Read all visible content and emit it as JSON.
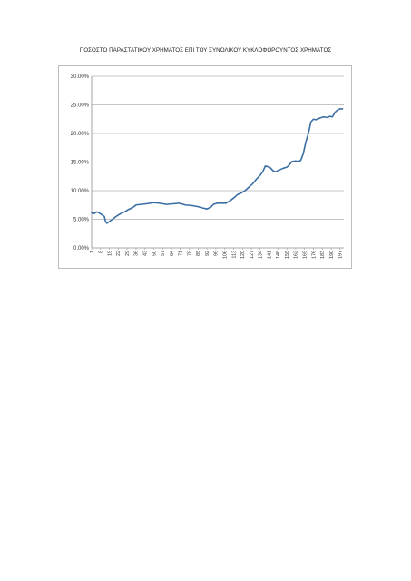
{
  "chart_data": {
    "type": "line",
    "title": "ΠΟΣΟΣΤΟ ΠΑΡΑΣΤΑΤΙΚΟΥ ΧΡΗΜΑΤΟΣ ΕΠΙ ΤΟΥ ΣΥΝΟΛΙΚΟΥ ΚΥΚΛΟΦΟΡΟΥΝΤΟΣ ΧΡΗΜΑΤΟΣ",
    "xlabel": "",
    "ylabel": "",
    "ylim": [
      0,
      30
    ],
    "xlim": [
      1,
      200
    ],
    "grid": true,
    "legend": "none",
    "y_tick_labels": [
      "0.00%",
      "5.00%",
      "10.00%",
      "15.00%",
      "20.00%",
      "25.00%",
      "30.00%"
    ],
    "x_tick_labels": [
      "1",
      "8",
      "15",
      "22",
      "29",
      "36",
      "43",
      "50",
      "57",
      "64",
      "71",
      "78",
      "85",
      "92",
      "99",
      "106",
      "113",
      "120",
      "127",
      "134",
      "141",
      "148",
      "155",
      "162",
      "169",
      "176",
      "183",
      "190",
      "197"
    ],
    "colors": {
      "line": "#3a6ea5",
      "grid": "#8c8c8c"
    },
    "series": [
      {
        "values": [
          [
            1,
            6.1
          ],
          [
            3,
            6.0
          ],
          [
            5,
            6.3
          ],
          [
            7,
            6.1
          ],
          [
            9,
            5.8
          ],
          [
            11,
            5.5
          ],
          [
            12,
            4.6
          ],
          [
            13,
            4.3
          ],
          [
            15,
            4.6
          ],
          [
            18,
            5.1
          ],
          [
            21,
            5.6
          ],
          [
            24,
            6.0
          ],
          [
            27,
            6.3
          ],
          [
            30,
            6.7
          ],
          [
            33,
            7.0
          ],
          [
            35,
            7.3
          ],
          [
            36,
            7.5
          ],
          [
            40,
            7.6
          ],
          [
            44,
            7.7
          ],
          [
            50,
            7.9
          ],
          [
            55,
            7.8
          ],
          [
            60,
            7.6
          ],
          [
            65,
            7.7
          ],
          [
            70,
            7.8
          ],
          [
            75,
            7.5
          ],
          [
            80,
            7.4
          ],
          [
            85,
            7.2
          ],
          [
            88,
            7.0
          ],
          [
            92,
            6.8
          ],
          [
            95,
            7.1
          ],
          [
            97,
            7.6
          ],
          [
            100,
            7.8
          ],
          [
            103,
            7.8
          ],
          [
            107,
            7.8
          ],
          [
            110,
            8.2
          ],
          [
            113,
            8.7
          ],
          [
            116,
            9.3
          ],
          [
            119,
            9.6
          ],
          [
            122,
            10.0
          ],
          [
            125,
            10.6
          ],
          [
            128,
            11.2
          ],
          [
            131,
            12.0
          ],
          [
            134,
            12.7
          ],
          [
            136,
            13.3
          ],
          [
            138,
            14.3
          ],
          [
            140,
            14.2
          ],
          [
            142,
            14.0
          ],
          [
            144,
            13.5
          ],
          [
            146,
            13.3
          ],
          [
            149,
            13.6
          ],
          [
            152,
            13.9
          ],
          [
            155,
            14.1
          ],
          [
            157,
            14.5
          ],
          [
            159,
            15.1
          ],
          [
            162,
            15.2
          ],
          [
            164,
            15.1
          ],
          [
            166,
            15.3
          ],
          [
            168,
            16.5
          ],
          [
            170,
            18.5
          ],
          [
            172,
            20.0
          ],
          [
            173,
            21.0
          ],
          [
            174,
            22.0
          ],
          [
            176,
            22.5
          ],
          [
            178,
            22.4
          ],
          [
            181,
            22.7
          ],
          [
            184,
            22.9
          ],
          [
            187,
            22.8
          ],
          [
            189,
            23.0
          ],
          [
            191,
            22.9
          ],
          [
            193,
            23.7
          ],
          [
            195,
            24.1
          ],
          [
            197,
            24.3
          ],
          [
            199,
            24.3
          ]
        ]
      }
    ]
  }
}
